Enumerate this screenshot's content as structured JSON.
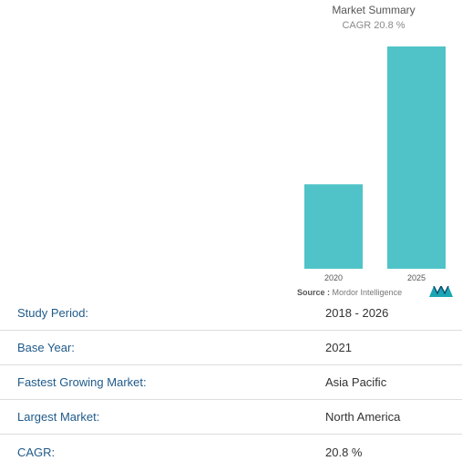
{
  "chart_data": {
    "type": "bar",
    "title": "Market Summary",
    "subtitle": "CAGR 20.8 %",
    "categories": [
      "2020",
      "2025"
    ],
    "values": [
      38,
      100
    ],
    "ylim": [
      0,
      100
    ],
    "grid": false,
    "bar_color": "#4fc3c8"
  },
  "source": {
    "label": "Source :",
    "name": "Mordor Intelligence"
  },
  "logo": {
    "icon": "mordor-intelligence-logo",
    "color": "#1aa6b3"
  },
  "summary": {
    "rows": [
      {
        "label": "Study Period:",
        "value": "2018 - 2026"
      },
      {
        "label": "Base Year:",
        "value": "2021"
      },
      {
        "label": "Fastest Growing Market:",
        "value": "Asia Pacific"
      },
      {
        "label": "Largest Market:",
        "value": "North America"
      },
      {
        "label": "CAGR:",
        "value": "20.8 %"
      }
    ]
  }
}
